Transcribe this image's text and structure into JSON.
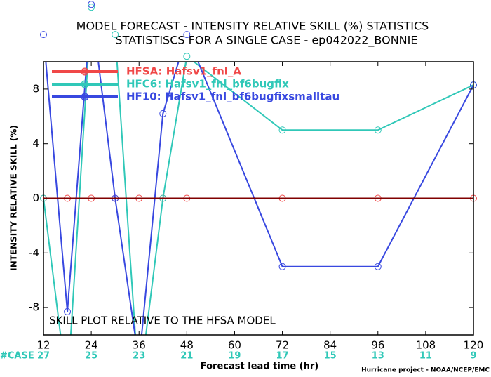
{
  "chart_data": {
    "type": "line",
    "title": "MODEL FORECAST - INTENSITY RELATIVE SKILL (%) STATISTICS",
    "subtitle": "STATISTISCS FOR A SINGLE CASE - ep042022_BONNIE",
    "x_label": "Forecast lead time (hr)",
    "y_label": "INTENSITY RELATIVE SKILL (%)",
    "annotation": "SKILL PLOT RELATIVE TO THE HFSA MODEL",
    "footer": "Hurricane project - NOAA/NCEP/EMC",
    "case_label": "#CASE",
    "x": [
      12,
      18,
      24,
      30,
      36,
      42,
      48,
      72,
      96,
      120
    ],
    "series": [
      {
        "name": "HFSA: Hafsv1_fnl_A",
        "color": "#f04848",
        "values": [
          0,
          0,
          0,
          0,
          0,
          0,
          0,
          0,
          0,
          0
        ]
      },
      {
        "name": "HFC6: Hafsv1_fnl_bf6bugfix",
        "color": "#30c8b8",
        "values": [
          0,
          -14,
          14,
          12,
          -14,
          0,
          10.4,
          5,
          5,
          8.3
        ]
      },
      {
        "name": "HF10: Hafsv1_fnl_bf6bugfixsmalltau",
        "color": "#3848e0",
        "values": [
          12,
          -8.3,
          14.2,
          0,
          -12,
          6.2,
          12,
          -5,
          -5,
          8.3
        ]
      }
    ],
    "case_x": [
      12,
      24,
      36,
      48,
      60,
      72,
      84,
      96,
      108,
      120
    ],
    "cases": [
      27,
      25,
      23,
      21,
      19,
      17,
      15,
      13,
      11,
      9
    ],
    "xlim": [
      12,
      120
    ],
    "xticks": [
      12,
      24,
      36,
      48,
      60,
      72,
      84,
      96,
      108,
      120
    ],
    "ylim": [
      -10,
      10
    ],
    "yticks": [
      -8,
      -4,
      0,
      4,
      8
    ]
  }
}
